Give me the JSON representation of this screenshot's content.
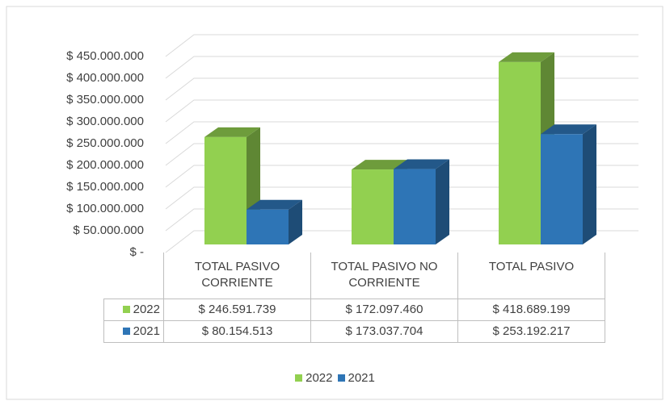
{
  "chart_data": {
    "type": "bar3d",
    "categories": [
      "TOTAL PASIVO CORRIENTE",
      "TOTAL PASIVO NO CORRIENTE",
      "TOTAL PASIVO"
    ],
    "series": [
      {
        "name": "2022",
        "color": "#92d050",
        "values": [
          246591739,
          172097460,
          418689199
        ],
        "value_labels": [
          "$ 246.591.739",
          "$ 172.097.460",
          "$ 418.689.199"
        ]
      },
      {
        "name": "2021",
        "color": "#2e75b6",
        "values": [
          80154513,
          173037704,
          253192217
        ],
        "value_labels": [
          "$ 80.154.513",
          "$ 173.037.704",
          "$ 253.192.217"
        ]
      }
    ],
    "ylim": [
      0,
      450000000
    ],
    "yticks": [
      {
        "value": 0,
        "label": "$ -"
      },
      {
        "value": 50000000,
        "label": "$ 50.000.000"
      },
      {
        "value": 100000000,
        "label": "$ 100.000.000"
      },
      {
        "value": 150000000,
        "label": "$ 150.000.000"
      },
      {
        "value": 200000000,
        "label": "$ 200.000.000"
      },
      {
        "value": 250000000,
        "label": "$ 250.000.000"
      },
      {
        "value": 300000000,
        "label": "$ 300.000.000"
      },
      {
        "value": 350000000,
        "label": "$ 350.000.000"
      },
      {
        "value": 400000000,
        "label": "$ 400.000.000"
      },
      {
        "value": 450000000,
        "label": "$ 450.000.000"
      }
    ],
    "grid": true,
    "legend": "bottom",
    "data_table": true
  }
}
